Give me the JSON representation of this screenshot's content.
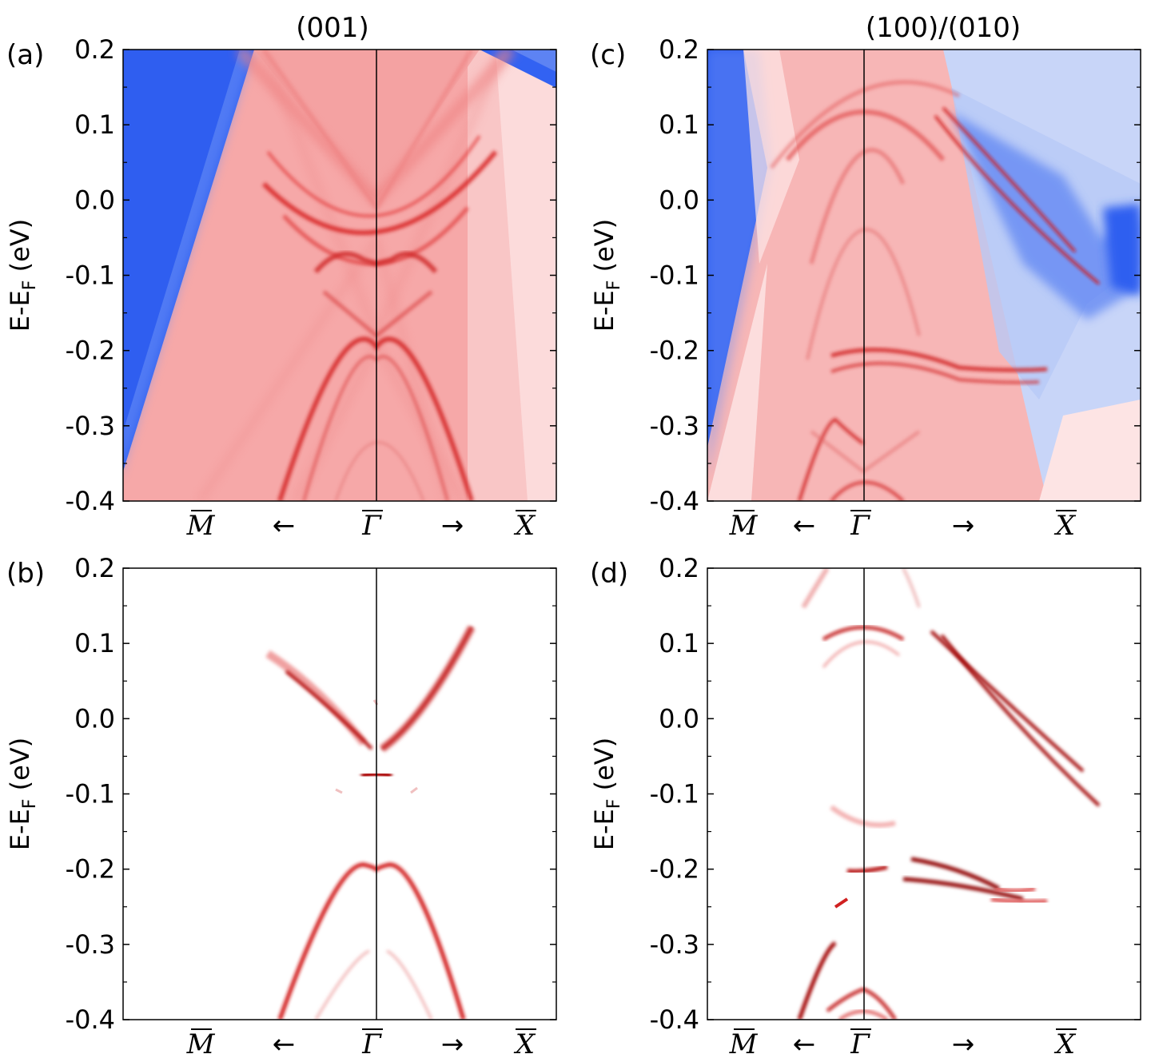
{
  "column_titles": [
    "(001)",
    "(100)/(010)"
  ],
  "panel_labels": [
    "(a)",
    "(b)",
    "(c)",
    "(d)"
  ],
  "ylabel_main": "E-E",
  "ylabel_sub": "F",
  "ylabel_unit": " (eV)",
  "kpoint_labels": {
    "M": "M",
    "Gamma": "Γ",
    "X": "X",
    "left_arrow": "←",
    "right_arrow": "→"
  },
  "chart_data": [
    {
      "panel": "(a)",
      "type": "heatmap",
      "title": "(001)",
      "ylabel": "E-E_F (eV)",
      "ylim": [
        -0.4,
        0.2
      ],
      "yticks": [
        "0.2",
        "0.1",
        "0.0",
        "-0.1",
        "-0.2",
        "-0.3",
        "-0.4"
      ],
      "xticklabels": [
        "M̄",
        "←",
        "Γ̄",
        "→",
        "X̄"
      ],
      "colors": {
        "bulk_gap": "#2f62f0",
        "continuum": "#f6a7a7",
        "surface_state": "#dd2020"
      },
      "surface_bands": [
        {
          "name": "upper Dirac-like branch",
          "minimum_eV": -0.04
        },
        {
          "name": "mid-gap crossing",
          "energy_eV": -0.08
        },
        {
          "name": "valence-like branch",
          "maximum_eV": -0.195
        }
      ]
    },
    {
      "panel": "(b)",
      "type": "heatmap",
      "ylabel": "E-E_F (eV)",
      "ylim": [
        -0.4,
        0.2
      ],
      "yticks": [
        "0.2",
        "0.1",
        "0.0",
        "-0.1",
        "-0.2",
        "-0.3",
        "-0.4"
      ],
      "xticklabels": [
        "M̄",
        "←",
        "Γ̄",
        "→",
        "X̄"
      ],
      "colors": {
        "background": "#ffffff",
        "surface_state": "#b00000"
      },
      "surface_bands": [
        {
          "name": "upper branch",
          "minimum_eV": -0.04,
          "left_end_eV": 0.09,
          "right_end_eV": 0.12
        },
        {
          "name": "flat segment at Γ̄",
          "energy_eV": -0.078
        },
        {
          "name": "lower branch",
          "maximum_eV": -0.195
        },
        {
          "name": "faint lower branch",
          "maximum_eV": -0.31
        }
      ]
    },
    {
      "panel": "(c)",
      "type": "heatmap",
      "title": "(100)/(010)",
      "ylabel": "E-E_F (eV)",
      "ylim": [
        -0.4,
        0.2
      ],
      "yticks": [
        "0.2",
        "0.1",
        "0.0",
        "-0.1",
        "-0.2",
        "-0.3",
        "-0.4"
      ],
      "xticklabels": [
        "M̄",
        "←",
        "Γ̄",
        "→",
        "X̄"
      ],
      "colors": {
        "bulk_gap": "#2f62f0",
        "continuum": "#f6b0b0",
        "pale_blue": "#c9d6f8",
        "surface_state": "#dd2020"
      },
      "surface_bands": [
        {
          "name": "arc near Γ̄",
          "maximum_eV": 0.12
        },
        {
          "name": "X̄-side pair",
          "start_eV": 0.12,
          "end_eV": [
            -0.07,
            -0.115
          ]
        },
        {
          "name": "flat pair",
          "energy_eV": [
            -0.22,
            -0.24
          ]
        }
      ]
    },
    {
      "panel": "(d)",
      "type": "heatmap",
      "ylabel": "E-E_F (eV)",
      "ylim": [
        -0.4,
        0.2
      ],
      "yticks": [
        "0.2",
        "0.1",
        "0.0",
        "-0.1",
        "-0.2",
        "-0.3",
        "-0.4"
      ],
      "xticklabels": [
        "M̄",
        "←",
        "Γ̄",
        "→",
        "X̄"
      ],
      "colors": {
        "background": "#ffffff",
        "surface_state": "#b00000"
      },
      "surface_bands": [
        {
          "name": "arc near Γ̄",
          "maximum_eV": 0.115
        },
        {
          "name": "X̄-side pair",
          "start_eV": 0.115,
          "end_eV": [
            -0.07,
            -0.115
          ]
        },
        {
          "name": "flat pair",
          "energy_eV": [
            -0.21,
            -0.24
          ]
        },
        {
          "name": "lower pocket",
          "maximum_eV": -0.355
        }
      ]
    }
  ]
}
